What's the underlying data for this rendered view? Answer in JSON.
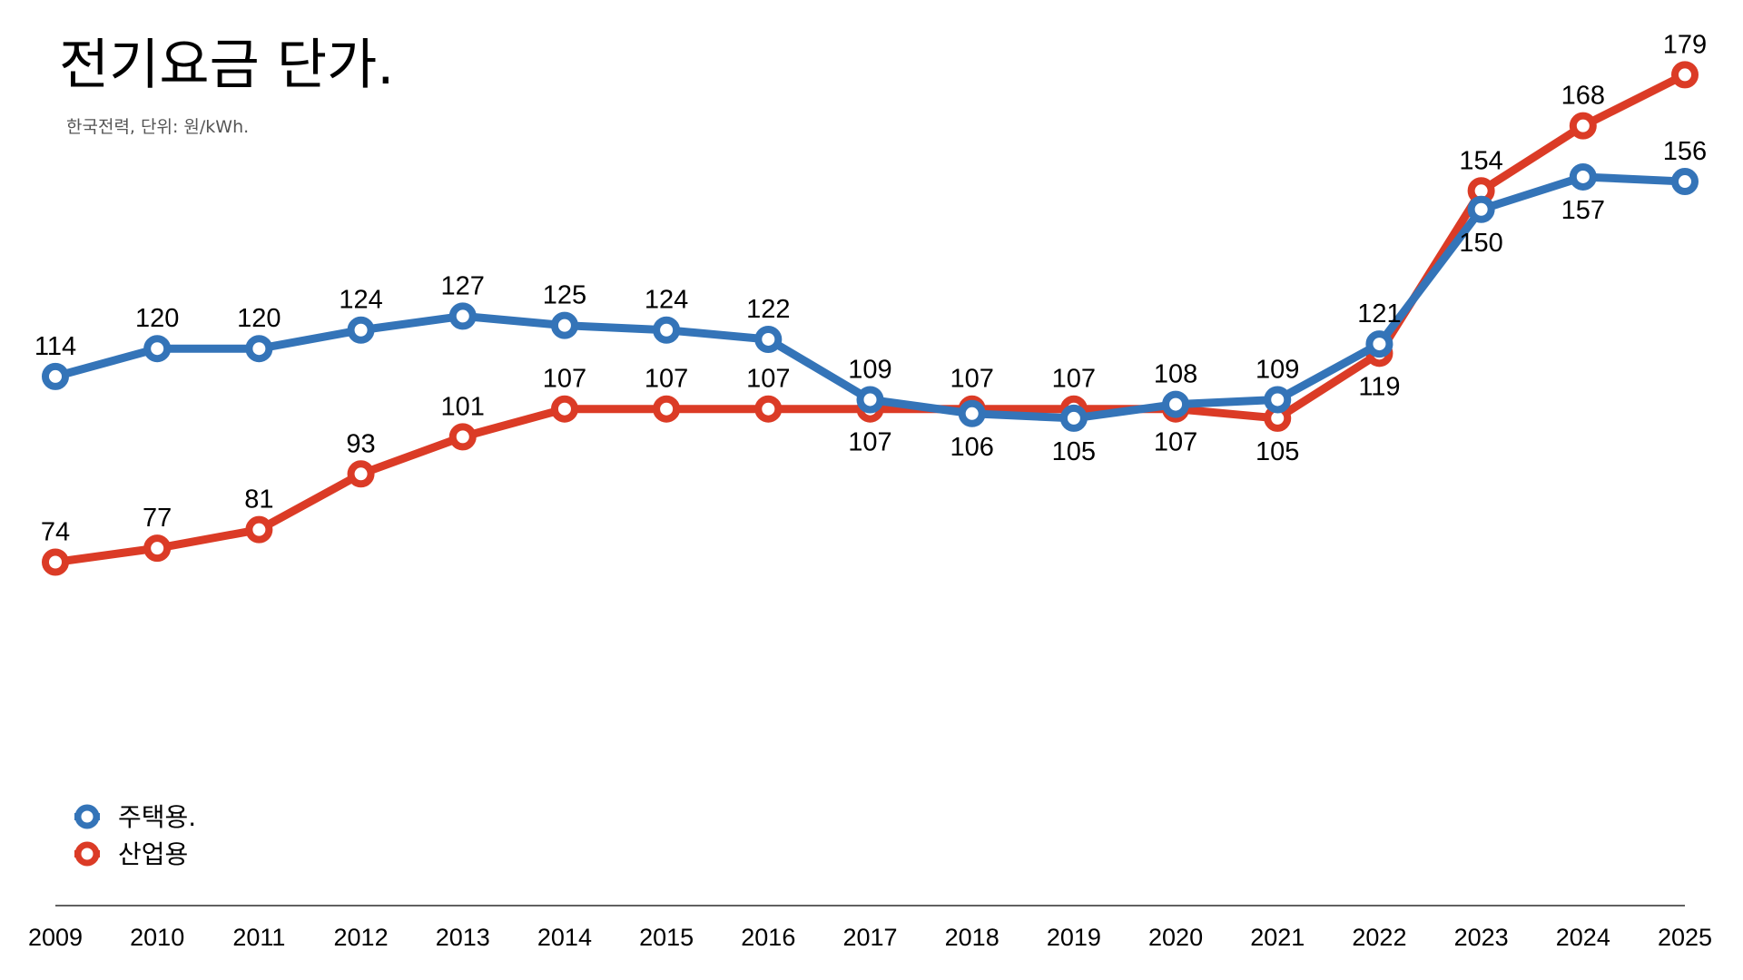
{
  "chart_data": {
    "type": "line",
    "title": "전기요금 단가.",
    "subtitle": "한국전력, 단위: 원/kWh.",
    "categories": [
      "2009",
      "2010",
      "2011",
      "2012",
      "2013",
      "2014",
      "2015",
      "2016",
      "2017",
      "2018",
      "2019",
      "2020",
      "2021",
      "2022",
      "2023",
      "2024",
      "2025"
    ],
    "series": [
      {
        "name": "주택용.",
        "color": "#3474b8",
        "values": [
          114,
          120,
          120,
          124,
          127,
          125,
          124,
          122,
          109,
          106,
          105,
          108,
          109,
          121,
          150,
          157,
          156
        ]
      },
      {
        "name": "산업용",
        "color": "#db3b26",
        "values": [
          74,
          77,
          81,
          93,
          101,
          107,
          107,
          107,
          107,
          107,
          107,
          107,
          105,
          119,
          154,
          168,
          179
        ]
      }
    ],
    "ylim": [
      0,
      195
    ],
    "grid": false,
    "legend_position": "bottom-left",
    "data_labels": true,
    "marker": "hollow-circle"
  }
}
